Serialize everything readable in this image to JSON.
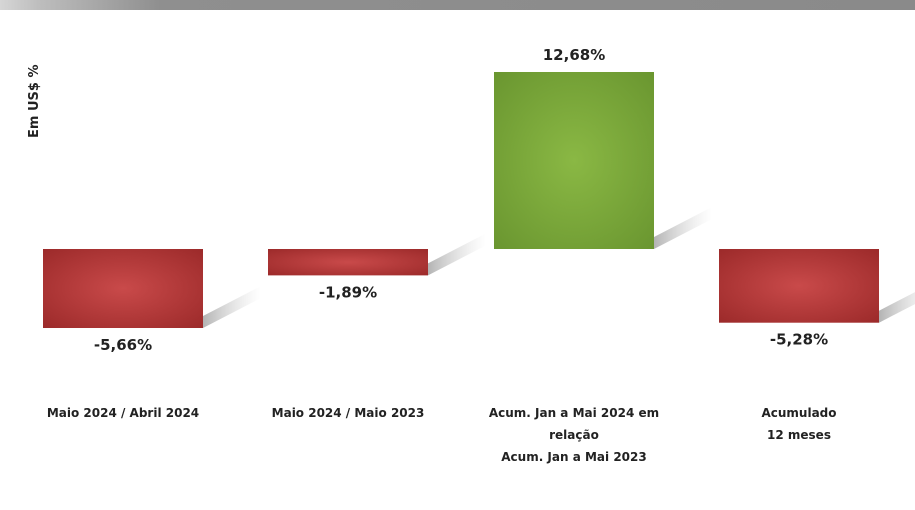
{
  "chart_data": {
    "type": "bar",
    "ylabel": "Em US$ %",
    "categories": [
      [
        "Maio 2024 / Abril 2024"
      ],
      [
        "Maio 2024 / Maio 2023"
      ],
      [
        "Acum. Jan a Mai 2024 em",
        "relação",
        "Acum. Jan a Mai 2023"
      ],
      [
        "Acumulado",
        "12 meses"
      ]
    ],
    "values": [
      -5.66,
      -1.89,
      12.68,
      -5.28
    ],
    "value_labels": [
      "-5,66%",
      "-1,89%",
      "12,68%",
      "-5,28%"
    ],
    "colors": {
      "negative": "#b83a3a",
      "positive": "#78a83a"
    },
    "grid": false,
    "legend": "none"
  }
}
